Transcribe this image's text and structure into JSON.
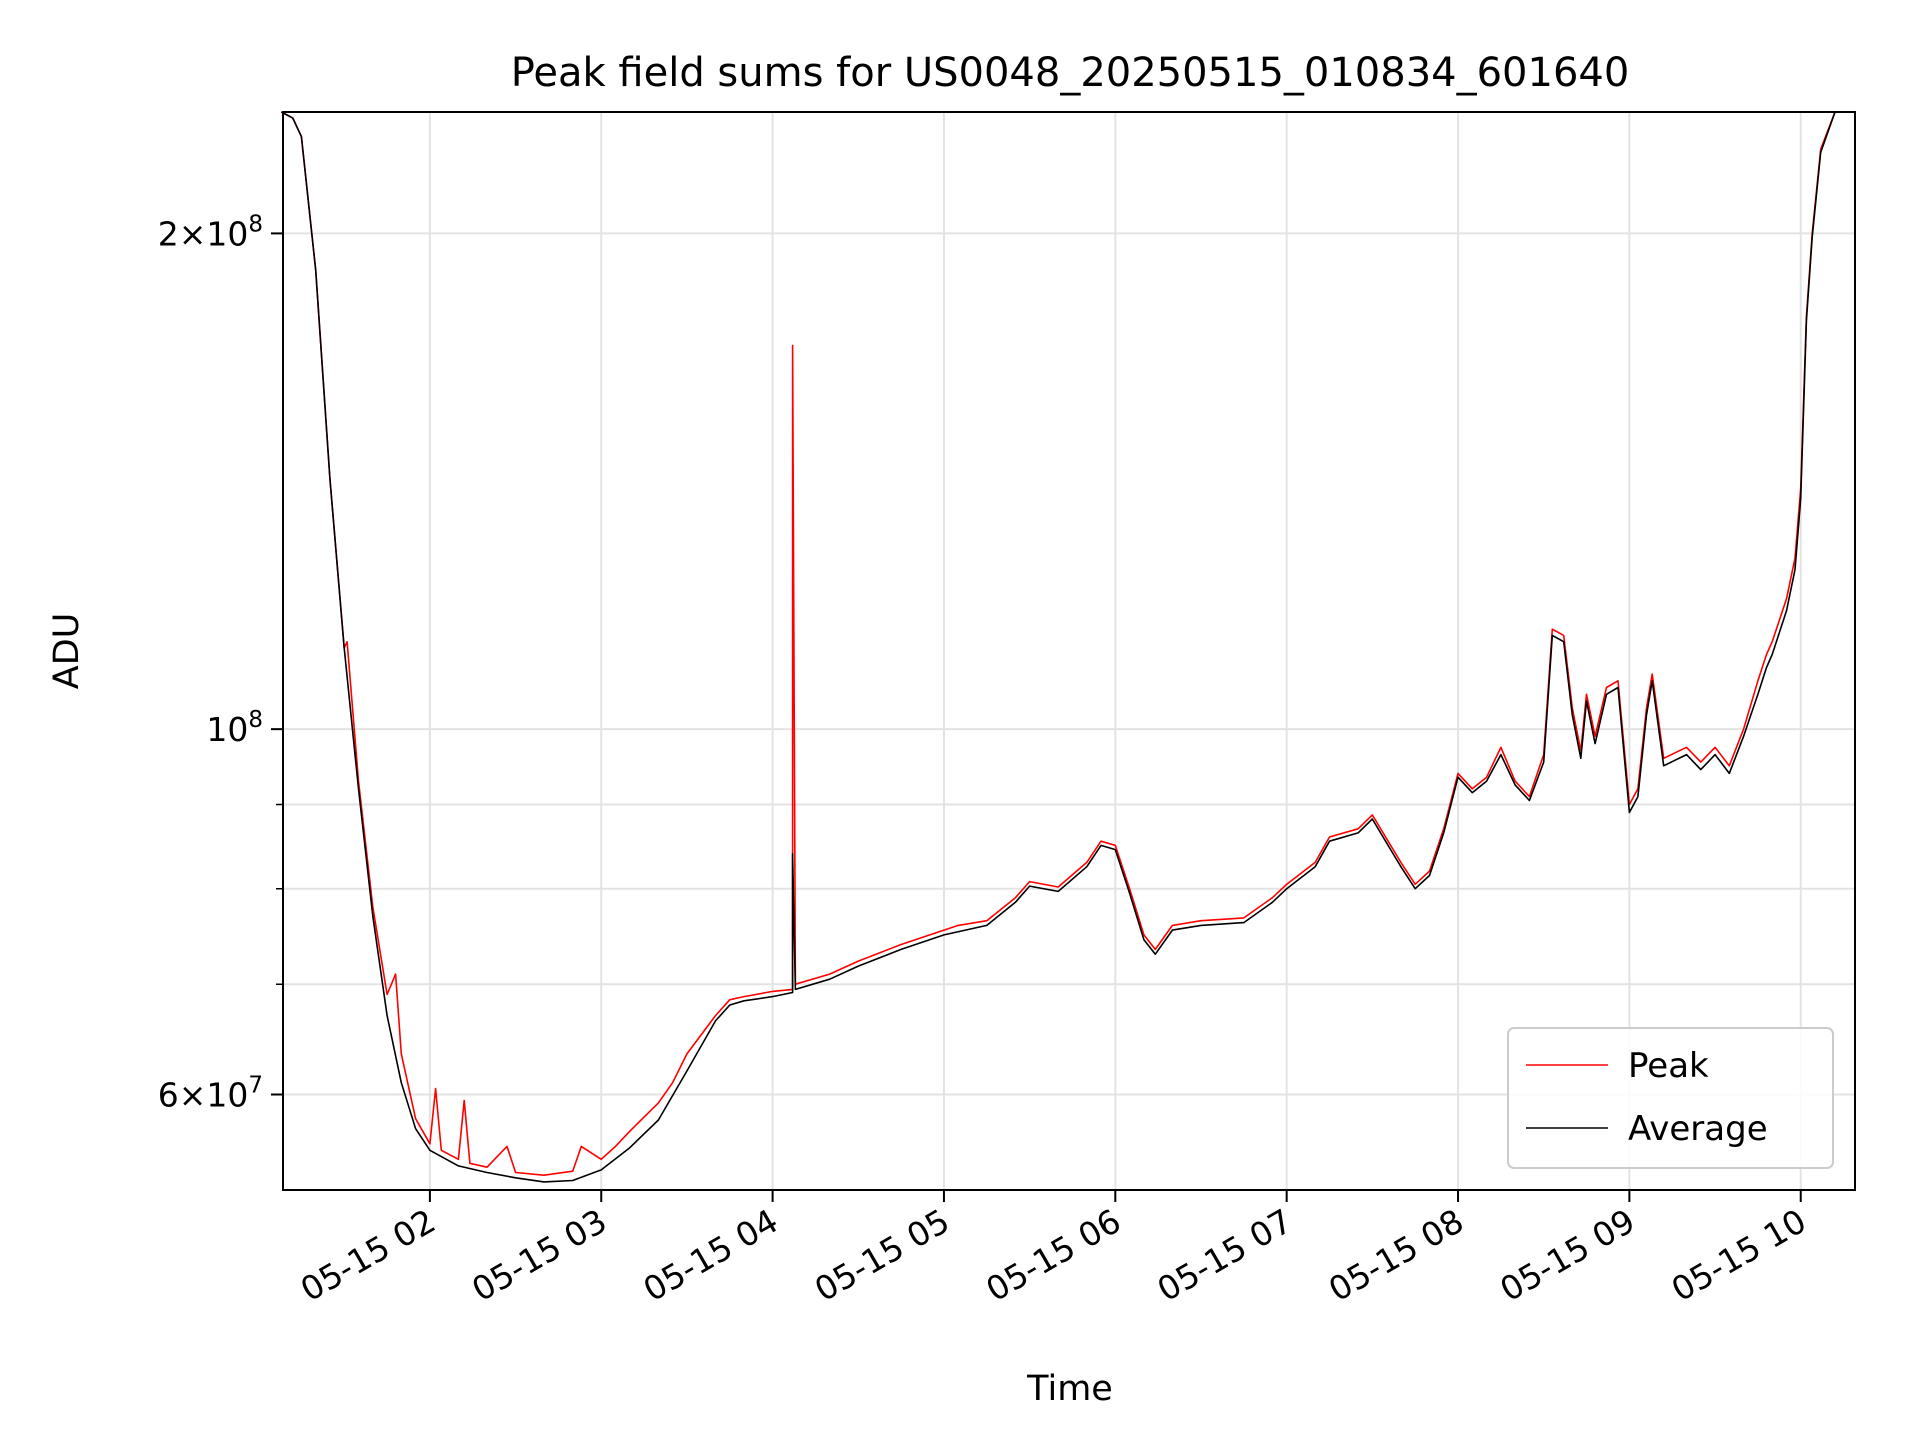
{
  "chart_data": {
    "type": "line",
    "title": "Peak field sums for US0048_20250515_010834_601640",
    "xlabel": "Time",
    "ylabel": "ADU",
    "y_scale": "log",
    "ylim": [
      52500000,
      237000000
    ],
    "xlim": [
      "2025-05-15 01:08:34",
      "2025-05-15 10:19:00"
    ],
    "grid": true,
    "legend_position": "lower-right",
    "x_ticks": [
      {
        "t": "2025-05-15 02:00",
        "label": "05-15 02"
      },
      {
        "t": "2025-05-15 03:00",
        "label": "05-15 03"
      },
      {
        "t": "2025-05-15 04:00",
        "label": "05-15 04"
      },
      {
        "t": "2025-05-15 05:00",
        "label": "05-15 05"
      },
      {
        "t": "2025-05-15 06:00",
        "label": "05-15 06"
      },
      {
        "t": "2025-05-15 07:00",
        "label": "05-15 07"
      },
      {
        "t": "2025-05-15 08:00",
        "label": "05-15 08"
      },
      {
        "t": "2025-05-15 09:00",
        "label": "05-15 09"
      },
      {
        "t": "2025-05-15 10:00",
        "label": "05-15 10"
      }
    ],
    "y_major_ticks": [
      {
        "v": 200000000,
        "mant": "2",
        "exp": "8"
      },
      {
        "v": 100000000,
        "mant": "",
        "exp": "8"
      },
      {
        "v": 60000000,
        "mant": "6",
        "exp": "7"
      }
    ],
    "y_minor_ticks": [
      70000000,
      80000000,
      90000000
    ],
    "series": [
      {
        "name": "Peak",
        "color": "#ff0000",
        "points": [
          [
            "2025-05-15 01:08",
            237000000
          ],
          [
            "2025-05-15 01:12",
            235000000
          ],
          [
            "2025-05-15 01:15",
            229000000
          ],
          [
            "2025-05-15 01:20",
            190000000
          ],
          [
            "2025-05-15 01:25",
            142000000
          ],
          [
            "2025-05-15 01:30",
            112000000
          ],
          [
            "2025-05-15 01:31",
            113000000
          ],
          [
            "2025-05-15 01:35",
            93000000
          ],
          [
            "2025-05-15 01:40",
            78000000
          ],
          [
            "2025-05-15 01:45",
            69000000
          ],
          [
            "2025-05-15 01:48",
            71000000
          ],
          [
            "2025-05-15 01:50",
            63500000
          ],
          [
            "2025-05-15 01:55",
            58000000
          ],
          [
            "2025-05-15 02:00",
            56000000
          ],
          [
            "2025-05-15 02:02",
            60500000
          ],
          [
            "2025-05-15 02:04",
            55500000
          ],
          [
            "2025-05-15 02:10",
            54800000
          ],
          [
            "2025-05-15 02:12",
            59500000
          ],
          [
            "2025-05-15 02:14",
            54500000
          ],
          [
            "2025-05-15 02:20",
            54200000
          ],
          [
            "2025-05-15 02:27",
            55800000
          ],
          [
            "2025-05-15 02:30",
            53800000
          ],
          [
            "2025-05-15 02:40",
            53600000
          ],
          [
            "2025-05-15 02:50",
            53900000
          ],
          [
            "2025-05-15 02:53",
            55800000
          ],
          [
            "2025-05-15 03:00",
            54800000
          ],
          [
            "2025-05-15 03:05",
            55800000
          ],
          [
            "2025-05-15 03:10",
            57000000
          ],
          [
            "2025-05-15 03:20",
            59300000
          ],
          [
            "2025-05-15 03:25",
            61000000
          ],
          [
            "2025-05-15 03:30",
            63500000
          ],
          [
            "2025-05-15 03:40",
            67000000
          ],
          [
            "2025-05-15 03:45",
            68500000
          ],
          [
            "2025-05-15 03:50",
            68800000
          ],
          [
            "2025-05-15 04:00",
            69300000
          ],
          [
            "2025-05-15 04:07",
            69500000
          ],
          [
            "2025-05-15 04:07",
            171000000
          ],
          [
            "2025-05-15 04:08",
            70000000
          ],
          [
            "2025-05-15 04:20",
            71000000
          ],
          [
            "2025-05-15 04:30",
            72300000
          ],
          [
            "2025-05-15 04:45",
            74000000
          ],
          [
            "2025-05-15 05:00",
            75500000
          ],
          [
            "2025-05-15 05:05",
            76000000
          ],
          [
            "2025-05-15 05:15",
            76500000
          ],
          [
            "2025-05-15 05:25",
            79000000
          ],
          [
            "2025-05-15 05:30",
            80800000
          ],
          [
            "2025-05-15 05:40",
            80200000
          ],
          [
            "2025-05-15 05:50",
            83000000
          ],
          [
            "2025-05-15 05:55",
            85500000
          ],
          [
            "2025-05-15 06:00",
            85000000
          ],
          [
            "2025-05-15 06:05",
            80000000
          ],
          [
            "2025-05-15 06:10",
            75000000
          ],
          [
            "2025-05-15 06:14",
            73500000
          ],
          [
            "2025-05-15 06:20",
            76000000
          ],
          [
            "2025-05-15 06:30",
            76500000
          ],
          [
            "2025-05-15 06:45",
            76800000
          ],
          [
            "2025-05-15 06:55",
            79000000
          ],
          [
            "2025-05-15 07:00",
            80500000
          ],
          [
            "2025-05-15 07:10",
            83000000
          ],
          [
            "2025-05-15 07:15",
            86000000
          ],
          [
            "2025-05-15 07:25",
            87000000
          ],
          [
            "2025-05-15 07:30",
            88700000
          ],
          [
            "2025-05-15 07:35",
            85800000
          ],
          [
            "2025-05-15 07:40",
            83000000
          ],
          [
            "2025-05-15 07:45",
            80500000
          ],
          [
            "2025-05-15 07:50",
            82000000
          ],
          [
            "2025-05-15 07:55",
            87000000
          ],
          [
            "2025-05-15 08:00",
            94000000
          ],
          [
            "2025-05-15 08:05",
            92000000
          ],
          [
            "2025-05-15 08:10",
            93500000
          ],
          [
            "2025-05-15 08:15",
            97500000
          ],
          [
            "2025-05-15 08:20",
            93000000
          ],
          [
            "2025-05-15 08:25",
            91000000
          ],
          [
            "2025-05-15 08:30",
            96500000
          ],
          [
            "2025-05-15 08:33",
            115000000
          ],
          [
            "2025-05-15 08:37",
            114000000
          ],
          [
            "2025-05-15 08:40",
            103000000
          ],
          [
            "2025-05-15 08:43",
            97000000
          ],
          [
            "2025-05-15 08:45",
            105000000
          ],
          [
            "2025-05-15 08:48",
            99000000
          ],
          [
            "2025-05-15 08:52",
            106000000
          ],
          [
            "2025-05-15 08:56",
            107000000
          ],
          [
            "2025-05-15 09:00",
            90000000
          ],
          [
            "2025-05-15 09:03",
            92000000
          ],
          [
            "2025-05-15 09:06",
            103000000
          ],
          [
            "2025-05-15 09:08",
            108000000
          ],
          [
            "2025-05-15 09:12",
            96000000
          ],
          [
            "2025-05-15 09:20",
            97500000
          ],
          [
            "2025-05-15 09:25",
            95500000
          ],
          [
            "2025-05-15 09:30",
            97500000
          ],
          [
            "2025-05-15 09:35",
            95000000
          ],
          [
            "2025-05-15 09:40",
            100000000
          ],
          [
            "2025-05-15 09:45",
            107000000
          ],
          [
            "2025-05-15 09:48",
            111000000
          ],
          [
            "2025-05-15 09:50",
            113000000
          ],
          [
            "2025-05-15 09:55",
            120000000
          ],
          [
            "2025-05-15 09:58",
            127000000
          ],
          [
            "2025-05-15 10:00",
            140000000
          ],
          [
            "2025-05-15 10:02",
            178000000
          ],
          [
            "2025-05-15 10:04",
            200000000
          ],
          [
            "2025-05-15 10:07",
            225000000
          ],
          [
            "2025-05-15 10:12",
            237000000
          ],
          [
            "2025-05-15 10:19",
            237000000
          ]
        ]
      },
      {
        "name": "Average",
        "color": "#000000",
        "points": [
          [
            "2025-05-15 01:08",
            237000000
          ],
          [
            "2025-05-15 01:12",
            235000000
          ],
          [
            "2025-05-15 01:15",
            229000000
          ],
          [
            "2025-05-15 01:20",
            190000000
          ],
          [
            "2025-05-15 01:25",
            142000000
          ],
          [
            "2025-05-15 01:30",
            112000000
          ],
          [
            "2025-05-15 01:35",
            92000000
          ],
          [
            "2025-05-15 01:40",
            77000000
          ],
          [
            "2025-05-15 01:45",
            67000000
          ],
          [
            "2025-05-15 01:50",
            61000000
          ],
          [
            "2025-05-15 01:55",
            57200000
          ],
          [
            "2025-05-15 02:00",
            55500000
          ],
          [
            "2025-05-15 02:10",
            54300000
          ],
          [
            "2025-05-15 02:20",
            53800000
          ],
          [
            "2025-05-15 02:30",
            53400000
          ],
          [
            "2025-05-15 02:40",
            53100000
          ],
          [
            "2025-05-15 02:50",
            53200000
          ],
          [
            "2025-05-15 03:00",
            54000000
          ],
          [
            "2025-05-15 03:10",
            55700000
          ],
          [
            "2025-05-15 03:20",
            57900000
          ],
          [
            "2025-05-15 03:30",
            62000000
          ],
          [
            "2025-05-15 03:40",
            66500000
          ],
          [
            "2025-05-15 03:45",
            68000000
          ],
          [
            "2025-05-15 03:50",
            68400000
          ],
          [
            "2025-05-15 04:00",
            68800000
          ],
          [
            "2025-05-15 04:07",
            69200000
          ],
          [
            "2025-05-15 04:07",
            84000000
          ],
          [
            "2025-05-15 04:08",
            69500000
          ],
          [
            "2025-05-15 04:20",
            70500000
          ],
          [
            "2025-05-15 04:30",
            71800000
          ],
          [
            "2025-05-15 04:45",
            73500000
          ],
          [
            "2025-05-15 05:00",
            75000000
          ],
          [
            "2025-05-15 05:15",
            76000000
          ],
          [
            "2025-05-15 05:25",
            78500000
          ],
          [
            "2025-05-15 05:30",
            80300000
          ],
          [
            "2025-05-15 05:40",
            79700000
          ],
          [
            "2025-05-15 05:50",
            82500000
          ],
          [
            "2025-05-15 05:55",
            85000000
          ],
          [
            "2025-05-15 06:00",
            84500000
          ],
          [
            "2025-05-15 06:05",
            79500000
          ],
          [
            "2025-05-15 06:10",
            74500000
          ],
          [
            "2025-05-15 06:14",
            73000000
          ],
          [
            "2025-05-15 06:20",
            75500000
          ],
          [
            "2025-05-15 06:30",
            76000000
          ],
          [
            "2025-05-15 06:45",
            76300000
          ],
          [
            "2025-05-15 06:55",
            78500000
          ],
          [
            "2025-05-15 07:00",
            80000000
          ],
          [
            "2025-05-15 07:10",
            82500000
          ],
          [
            "2025-05-15 07:15",
            85500000
          ],
          [
            "2025-05-15 07:25",
            86500000
          ],
          [
            "2025-05-15 07:30",
            88200000
          ],
          [
            "2025-05-15 07:35",
            85300000
          ],
          [
            "2025-05-15 07:40",
            82500000
          ],
          [
            "2025-05-15 07:45",
            80000000
          ],
          [
            "2025-05-15 07:50",
            81500000
          ],
          [
            "2025-05-15 07:55",
            86500000
          ],
          [
            "2025-05-15 08:00",
            93500000
          ],
          [
            "2025-05-15 08:05",
            91500000
          ],
          [
            "2025-05-15 08:10",
            93000000
          ],
          [
            "2025-05-15 08:15",
            96500000
          ],
          [
            "2025-05-15 08:20",
            92500000
          ],
          [
            "2025-05-15 08:25",
            90500000
          ],
          [
            "2025-05-15 08:30",
            95500000
          ],
          [
            "2025-05-15 08:33",
            114000000
          ],
          [
            "2025-05-15 08:37",
            113000000
          ],
          [
            "2025-05-15 08:40",
            102000000
          ],
          [
            "2025-05-15 08:43",
            96000000
          ],
          [
            "2025-05-15 08:45",
            104000000
          ],
          [
            "2025-05-15 08:48",
            98000000
          ],
          [
            "2025-05-15 08:52",
            105000000
          ],
          [
            "2025-05-15 08:56",
            106000000
          ],
          [
            "2025-05-15 09:00",
            89000000
          ],
          [
            "2025-05-15 09:03",
            91000000
          ],
          [
            "2025-05-15 09:06",
            102000000
          ],
          [
            "2025-05-15 09:08",
            107000000
          ],
          [
            "2025-05-15 09:12",
            95000000
          ],
          [
            "2025-05-15 09:20",
            96500000
          ],
          [
            "2025-05-15 09:25",
            94500000
          ],
          [
            "2025-05-15 09:30",
            96500000
          ],
          [
            "2025-05-15 09:35",
            94000000
          ],
          [
            "2025-05-15 09:40",
            99000000
          ],
          [
            "2025-05-15 09:45",
            105000000
          ],
          [
            "2025-05-15 09:48",
            109000000
          ],
          [
            "2025-05-15 09:50",
            111000000
          ],
          [
            "2025-05-15 09:55",
            118000000
          ],
          [
            "2025-05-15 09:58",
            125000000
          ],
          [
            "2025-05-15 10:00",
            138000000
          ],
          [
            "2025-05-15 10:02",
            177000000
          ],
          [
            "2025-05-15 10:04",
            199000000
          ],
          [
            "2025-05-15 10:07",
            224000000
          ],
          [
            "2025-05-15 10:12",
            237000000
          ],
          [
            "2025-05-15 10:19",
            237000000
          ]
        ]
      }
    ]
  }
}
